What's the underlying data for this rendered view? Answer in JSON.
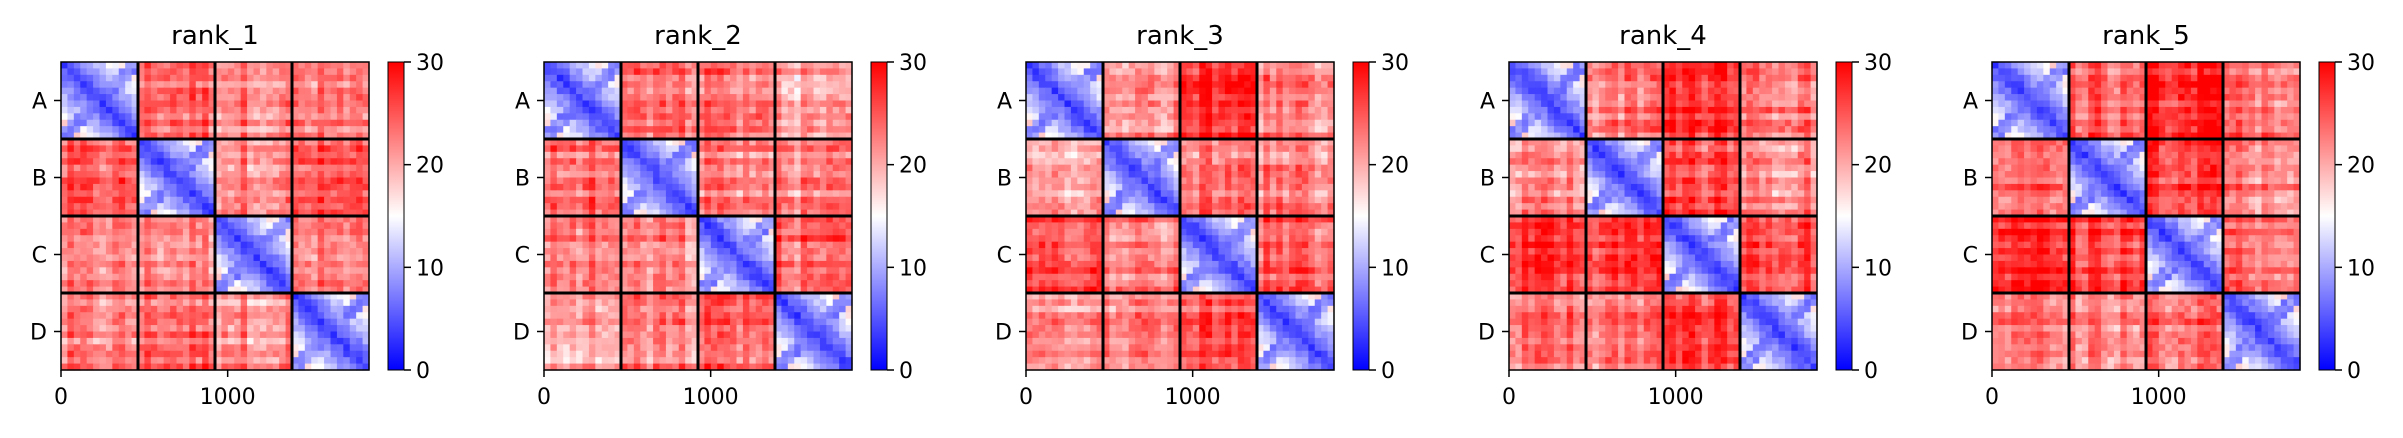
{
  "chart_data": {
    "type": "heatmap",
    "colormap": "bwr",
    "colormap_colors": [
      "#0000ff",
      "#ffffff",
      "#ff0000"
    ],
    "vmin": 0,
    "vmax": 30,
    "colorbar_ticks": [
      "0",
      "10",
      "20",
      "30"
    ],
    "chains": [
      "A",
      "B",
      "C",
      "D"
    ],
    "chain_lengths": [
      462,
      462,
      462,
      462
    ],
    "x_ticks": [
      {
        "value": 0,
        "label": "0"
      },
      {
        "value": 1000,
        "label": "1000"
      }
    ],
    "grid_lines": true,
    "panels": [
      {
        "title": "rank_1",
        "block_means": [
          [
            6,
            24,
            22,
            22
          ],
          [
            24,
            6,
            22,
            24
          ],
          [
            22,
            22,
            6,
            22
          ],
          [
            22,
            24,
            22,
            6
          ]
        ]
      },
      {
        "title": "rank_2",
        "block_means": [
          [
            6,
            23,
            23,
            20
          ],
          [
            23,
            6,
            22,
            22
          ],
          [
            23,
            22,
            6,
            24
          ],
          [
            20,
            22,
            24,
            6
          ]
        ]
      },
      {
        "title": "rank_3",
        "block_means": [
          [
            6,
            21,
            27,
            22
          ],
          [
            21,
            6,
            23,
            22
          ],
          [
            27,
            23,
            6,
            25
          ],
          [
            22,
            22,
            25,
            6
          ]
        ]
      },
      {
        "title": "rank_4",
        "block_means": [
          [
            6,
            22,
            27,
            23
          ],
          [
            22,
            6,
            26,
            22
          ],
          [
            27,
            26,
            6,
            26
          ],
          [
            23,
            22,
            26,
            6
          ]
        ]
      },
      {
        "title": "rank_5",
        "block_means": [
          [
            6,
            24,
            28,
            23
          ],
          [
            24,
            6,
            27,
            23
          ],
          [
            28,
            27,
            6,
            24
          ],
          [
            23,
            23,
            24,
            6
          ]
        ]
      }
    ]
  }
}
